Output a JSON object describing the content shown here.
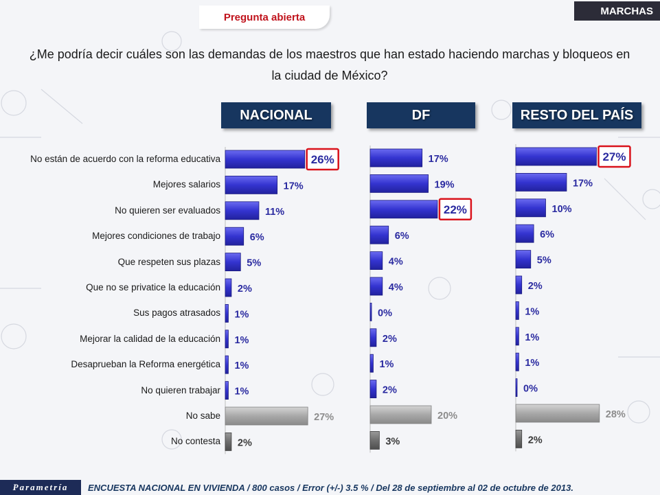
{
  "header": {
    "tag_left": "Pregunta abierta",
    "tag_right": "MARCHAS"
  },
  "question": "¿Me podría decir cuáles son las demandas de los maestros que han estado haciendo marchas y bloqueos en la ciudad de México?",
  "chart_data": {
    "type": "bar",
    "orientation": "horizontal",
    "categories": [
      "No están de acuerdo con la reforma educativa",
      "Mejores salarios",
      "No quieren ser evaluados",
      "Mejores condiciones de trabajo",
      "Que respeten sus plazas",
      "Que no se privatice la educación",
      "Sus pagos atrasados",
      "Mejorar la calidad de la educación",
      "Desaprueban la Reforma energética",
      "No quieren trabajar",
      "No sabe",
      "No contesta"
    ],
    "series": [
      {
        "name": "NACIONAL",
        "values": [
          26,
          17,
          11,
          6,
          5,
          2,
          1,
          1,
          1,
          1,
          27,
          2
        ],
        "highlight_index": 0
      },
      {
        "name": "DF",
        "values": [
          17,
          19,
          22,
          6,
          4,
          4,
          0,
          2,
          1,
          2,
          20,
          3
        ],
        "highlight_index": 2
      },
      {
        "name": "RESTO DEL PAÍS",
        "values": [
          27,
          17,
          10,
          6,
          5,
          2,
          1,
          1,
          1,
          0,
          28,
          2
        ],
        "highlight_index": 0
      }
    ],
    "value_suffix": "%",
    "colors": {
      "main": "#3333cc",
      "no_sabe": "#a6a6a6",
      "no_contesta": "#707070",
      "highlight": "#d9121b",
      "header": "#17365f"
    }
  },
  "footer": {
    "logo": "Parametría",
    "text": "ENCUESTA NACIONAL EN VIVIENDA / 800 casos / Error (+/-) 3.5 % / Del 28 de septiembre al 02 de octubre de 2013."
  }
}
